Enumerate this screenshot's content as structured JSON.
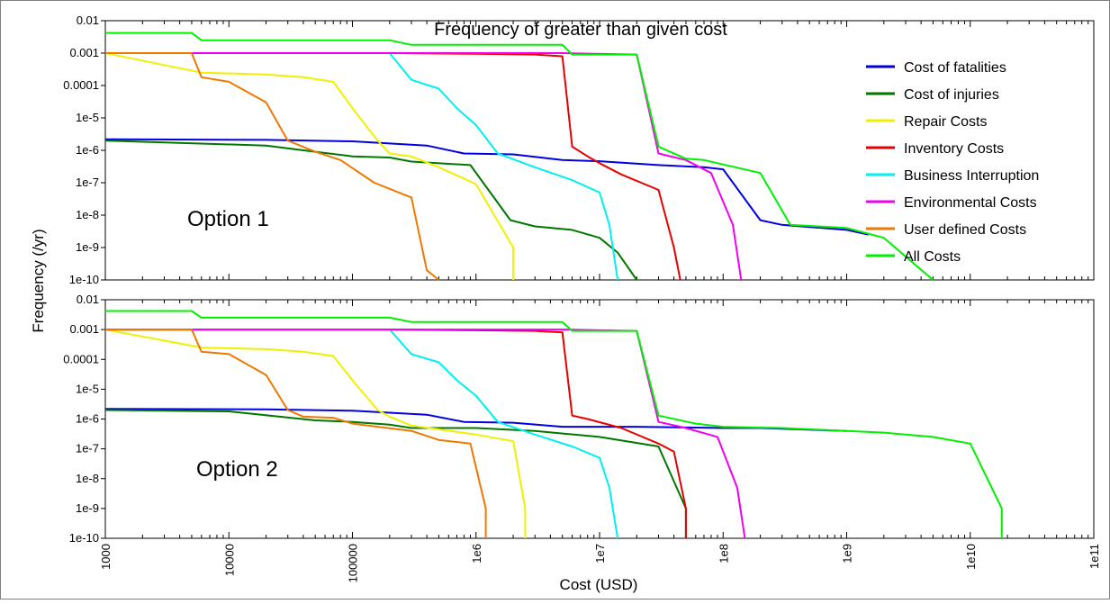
{
  "chart_data": {
    "type": "line",
    "title": "Frequency of greater than given cost",
    "xlabel": "Cost (USD)",
    "ylabel": "Frequency  (/yr)",
    "x_scale": "log",
    "y_scale": "log",
    "xlim": [
      1000,
      100000000000
    ],
    "ylim": [
      1e-10,
      0.01
    ],
    "x_tick_labels": [
      "1000",
      "10000",
      "100000",
      "1e6",
      "1e7",
      "1e8",
      "1e9",
      "1e10",
      "1e11"
    ],
    "y_tick_labels": [
      "0.01",
      "0.001",
      "0.0001",
      "1e-5",
      "1e-6",
      "1e-7",
      "1e-8",
      "1e-9",
      "1e-10"
    ],
    "grid": false,
    "legend_position": "top-right",
    "colors": {
      "Cost of fatalities": "#0000e0",
      "Cost of injuries": "#007800",
      "Repair Costs": "#f0f000",
      "Inventory Costs": "#e80000",
      "Business Interruption": "#00f0f0",
      "Environmental Costs": "#f000f0",
      "User defined Costs": "#f07800",
      "All Costs": "#00f000"
    },
    "panels": [
      {
        "label": "Option 1",
        "legend": [
          "Cost of fatalities",
          "Cost of injuries",
          "Repair Costs",
          "Inventory Costs",
          "Business Interruption",
          "Environmental Costs",
          "User defined Costs",
          "All Costs"
        ],
        "series": [
          {
            "name": "Cost of fatalities",
            "points": [
              [
                1000,
                2.2e-06
              ],
              [
                20000,
                2.1e-06
              ],
              [
                100000,
                1.9e-06
              ],
              [
                400000,
                1.4e-06
              ],
              [
                800000,
                8e-07
              ],
              [
                2000000,
                7.5e-07
              ],
              [
                5000000,
                5e-07
              ],
              [
                10000000,
                4.6e-07
              ],
              [
                30000000,
                3.5e-07
              ],
              [
                70000000,
                3e-07
              ],
              [
                100000000,
                2.6e-07
              ],
              [
                200000000,
                7e-09
              ],
              [
                300000000,
                5e-09
              ],
              [
                1000000000,
                3.5e-09
              ],
              [
                1500000000,
                2.5e-09
              ]
            ]
          },
          {
            "name": "Cost of injuries",
            "points": [
              [
                1000,
                2e-06
              ],
              [
                20000,
                1.4e-06
              ],
              [
                50000,
                9e-07
              ],
              [
                100000,
                6.5e-07
              ],
              [
                200000,
                6e-07
              ],
              [
                300000,
                4.5e-07
              ],
              [
                900000,
                3.5e-07
              ],
              [
                1900000,
                7e-09
              ],
              [
                3000000,
                4.5e-09
              ],
              [
                6000000,
                3.5e-09
              ],
              [
                10000000,
                2e-09
              ],
              [
                14000000,
                7e-10
              ],
              [
                20000000,
                1e-10
              ]
            ]
          },
          {
            "name": "Repair Costs",
            "points": [
              [
                1000,
                0.001
              ],
              [
                6000,
                0.00025
              ],
              [
                20000,
                0.00022
              ],
              [
                40000,
                0.00018
              ],
              [
                70000,
                0.00013
              ],
              [
                100000,
                2e-05
              ],
              [
                160000,
                2e-06
              ],
              [
                200000,
                8e-07
              ],
              [
                300000,
                6.5e-07
              ],
              [
                500000,
                3e-07
              ],
              [
                1000000,
                9e-08
              ],
              [
                2000000,
                1e-09
              ],
              [
                2000000,
                1e-10
              ]
            ]
          },
          {
            "name": "Inventory Costs",
            "points": [
              [
                1000,
                0.001
              ],
              [
                200000,
                0.001
              ],
              [
                1000000,
                0.00095
              ],
              [
                3000000,
                0.0009
              ],
              [
                5000000,
                0.0008
              ],
              [
                6000000,
                1.3e-06
              ],
              [
                8000000,
                6.5e-07
              ],
              [
                10000000,
                4e-07
              ],
              [
                15000000,
                1.8e-07
              ],
              [
                30000000,
                6e-08
              ],
              [
                40000000,
                1e-09
              ],
              [
                45000000,
                1e-10
              ]
            ]
          },
          {
            "name": "Business Interruption",
            "points": [
              [
                1000,
                0.001
              ],
              [
                200000,
                0.001
              ],
              [
                300000,
                0.00015
              ],
              [
                500000,
                8e-05
              ],
              [
                700000,
                2e-05
              ],
              [
                1000000,
                6e-06
              ],
              [
                1500000,
                8e-07
              ],
              [
                3000000,
                3e-07
              ],
              [
                6000000,
                1.2e-07
              ],
              [
                10000000,
                5e-08
              ],
              [
                12000000,
                5e-09
              ],
              [
                14000000,
                1e-10
              ]
            ]
          },
          {
            "name": "Environmental Costs",
            "points": [
              [
                1000,
                0.001
              ],
              [
                5000000,
                0.001
              ],
              [
                20000000,
                0.0009
              ],
              [
                30000000,
                8e-07
              ],
              [
                50000000,
                5e-07
              ],
              [
                80000000,
                2e-07
              ],
              [
                120000000,
                5e-09
              ],
              [
                140000000,
                1e-10
              ]
            ]
          },
          {
            "name": "User defined Costs",
            "points": [
              [
                1000,
                0.001
              ],
              [
                5000,
                0.001
              ],
              [
                6000,
                0.00018
              ],
              [
                10000,
                0.00013
              ],
              [
                20000,
                3e-05
              ],
              [
                30000,
                2e-06
              ],
              [
                50000,
                9e-07
              ],
              [
                80000,
                5e-07
              ],
              [
                150000,
                1e-07
              ],
              [
                300000,
                3.5e-08
              ],
              [
                400000,
                2e-10
              ],
              [
                500000,
                1e-10
              ]
            ]
          },
          {
            "name": "All Costs",
            "points": [
              [
                1000,
                0.0042
              ],
              [
                5000,
                0.0042
              ],
              [
                6000,
                0.0025
              ],
              [
                200000,
                0.0025
              ],
              [
                300000,
                0.0018
              ],
              [
                5000000,
                0.0018
              ],
              [
                6000000,
                0.0009
              ],
              [
                20000000,
                0.0009
              ],
              [
                30000000,
                1.3e-06
              ],
              [
                50000000,
                5.5e-07
              ],
              [
                70000000,
                5e-07
              ],
              [
                200000000,
                2e-07
              ],
              [
                350000000,
                5e-09
              ],
              [
                1000000000,
                4e-09
              ],
              [
                2000000000,
                2e-09
              ],
              [
                5000000000,
                1e-10
              ]
            ]
          }
        ]
      },
      {
        "label": "Option 2",
        "legend": [],
        "series": [
          {
            "name": "Cost of fatalities",
            "points": [
              [
                1000,
                2.2e-06
              ],
              [
                20000,
                2.1e-06
              ],
              [
                100000,
                1.9e-06
              ],
              [
                400000,
                1.4e-06
              ],
              [
                800000,
                8e-07
              ],
              [
                2000000,
                7.5e-07
              ],
              [
                5000000,
                5.5e-07
              ],
              [
                20000000,
                5.5e-07
              ],
              [
                100000000,
                5e-07
              ],
              [
                200000000,
                5e-07
              ],
              [
                1000000000,
                4e-07
              ]
            ]
          },
          {
            "name": "Cost of injuries",
            "points": [
              [
                1000,
                2e-06
              ],
              [
                10000,
                1.8e-06
              ],
              [
                50000,
                9e-07
              ],
              [
                100000,
                8e-07
              ],
              [
                200000,
                6.5e-07
              ],
              [
                300000,
                5e-07
              ],
              [
                1000000,
                5e-07
              ],
              [
                3000000,
                4e-07
              ],
              [
                10000000,
                2.5e-07
              ],
              [
                30000000,
                1.2e-07
              ],
              [
                50000000,
                1e-09
              ],
              [
                50000000,
                1e-10
              ]
            ]
          },
          {
            "name": "Repair Costs",
            "points": [
              [
                1000,
                0.001
              ],
              [
                6000,
                0.00025
              ],
              [
                20000,
                0.00022
              ],
              [
                40000,
                0.00018
              ],
              [
                70000,
                0.00013
              ],
              [
                100000,
                2e-05
              ],
              [
                160000,
                2e-06
              ],
              [
                200000,
                1.2e-06
              ],
              [
                300000,
                6e-07
              ],
              [
                1000000,
                3e-07
              ],
              [
                2000000,
                1.8e-07
              ],
              [
                2500000,
                1e-09
              ],
              [
                2500000,
                1e-10
              ]
            ]
          },
          {
            "name": "Inventory Costs",
            "points": [
              [
                1000,
                0.001
              ],
              [
                200000,
                0.001
              ],
              [
                1000000,
                0.00095
              ],
              [
                3000000,
                0.0009
              ],
              [
                5000000,
                0.0008
              ],
              [
                6000000,
                1.3e-06
              ],
              [
                8000000,
                1e-06
              ],
              [
                15000000,
                5e-07
              ],
              [
                30000000,
                1.5e-07
              ],
              [
                40000000,
                8e-08
              ],
              [
                50000000,
                1e-09
              ],
              [
                50000000,
                1e-10
              ]
            ]
          },
          {
            "name": "Business Interruption",
            "points": [
              [
                1000,
                0.001
              ],
              [
                200000,
                0.001
              ],
              [
                300000,
                0.00015
              ],
              [
                500000,
                8e-05
              ],
              [
                700000,
                2e-05
              ],
              [
                1000000,
                6e-06
              ],
              [
                1500000,
                8e-07
              ],
              [
                3000000,
                3e-07
              ],
              [
                6000000,
                1.2e-07
              ],
              [
                10000000,
                5e-08
              ],
              [
                12000000,
                5e-09
              ],
              [
                14000000,
                1e-10
              ]
            ]
          },
          {
            "name": "Environmental Costs",
            "points": [
              [
                1000,
                0.001
              ],
              [
                5000000,
                0.001
              ],
              [
                20000000,
                0.0009
              ],
              [
                30000000,
                8e-07
              ],
              [
                50000000,
                5e-07
              ],
              [
                90000000,
                2.5e-07
              ],
              [
                130000000,
                5e-09
              ],
              [
                150000000,
                1e-10
              ]
            ]
          },
          {
            "name": "User defined Costs",
            "points": [
              [
                1000,
                0.001
              ],
              [
                5000,
                0.001
              ],
              [
                6000,
                0.00018
              ],
              [
                10000,
                0.00015
              ],
              [
                20000,
                3e-05
              ],
              [
                30000,
                2e-06
              ],
              [
                40000,
                1.2e-06
              ],
              [
                70000,
                1.1e-06
              ],
              [
                100000,
                7e-07
              ],
              [
                300000,
                4e-07
              ],
              [
                500000,
                2e-07
              ],
              [
                900000,
                1.5e-07
              ],
              [
                1200000,
                1e-09
              ],
              [
                1200000,
                1e-10
              ]
            ]
          },
          {
            "name": "All Costs",
            "points": [
              [
                1000,
                0.0042
              ],
              [
                5000,
                0.0042
              ],
              [
                6000,
                0.0025
              ],
              [
                200000,
                0.0025
              ],
              [
                300000,
                0.0018
              ],
              [
                5000000,
                0.0018
              ],
              [
                6000000,
                0.0009
              ],
              [
                20000000,
                0.0009
              ],
              [
                30000000,
                1.3e-06
              ],
              [
                60000000,
                7e-07
              ],
              [
                100000000,
                5.5e-07
              ],
              [
                300000000,
                5e-07
              ],
              [
                2000000000,
                3.5e-07
              ],
              [
                5000000000,
                2.5e-07
              ],
              [
                10000000000,
                1.5e-07
              ],
              [
                18000000000,
                1e-09
              ],
              [
                18000000000,
                1e-10
              ]
            ]
          }
        ]
      }
    ]
  }
}
